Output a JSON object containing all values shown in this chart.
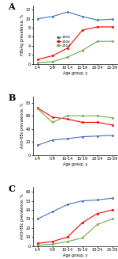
{
  "age_groups": [
    "1-4",
    "5-9",
    "10-14",
    "15-19",
    "20-24",
    "25-29"
  ],
  "panel_A": {
    "title": "A",
    "ylabel": "HBsAg prevalence, %",
    "ylim": [
      0,
      13
    ],
    "yticks": [
      0,
      2,
      4,
      6,
      8,
      10,
      12
    ],
    "series": {
      "1992": [
        10.0,
        10.5,
        11.5,
        10.5,
        9.7,
        9.9
      ],
      "2006": [
        1.0,
        1.8,
        3.5,
        7.5,
        8.2,
        8.2
      ],
      "2014": [
        0.3,
        0.5,
        1.5,
        3.0,
        5.0,
        5.0
      ]
    }
  },
  "panel_B": {
    "title": "B",
    "ylabel": "Anti-HBs prevalence, %",
    "ylim": [
      0,
      90
    ],
    "yticks": [
      0,
      20,
      40,
      60,
      80
    ],
    "series": {
      "1992": [
        15,
        23,
        25,
        28,
        29,
        30
      ],
      "2006": [
        72,
        58,
        55,
        50,
        50,
        46
      ],
      "2014": [
        71,
        50,
        60,
        60,
        60,
        57
      ]
    }
  },
  "panel_C": {
    "title": "C",
    "ylabel": "Anti-HBc prevalence, %",
    "ylim": [
      0,
      65
    ],
    "yticks": [
      0,
      10,
      20,
      30,
      40,
      50,
      60
    ],
    "series": {
      "1992": [
        30,
        38,
        46,
        50,
        51,
        53
      ],
      "2006": [
        3,
        5,
        10,
        26,
        36,
        40
      ],
      "2014": [
        1,
        2,
        5,
        9,
        24,
        30
      ]
    }
  },
  "colors": {
    "1992": "#4472C4",
    "2006": "#FF0000",
    "2014": "#70AD47"
  },
  "marker": "s",
  "linewidth": 0.8,
  "markersize": 2.0,
  "xlabel": "Age group, y",
  "legend_labels": [
    "1992",
    "2006",
    "2014"
  ],
  "background_color": "#ffffff"
}
